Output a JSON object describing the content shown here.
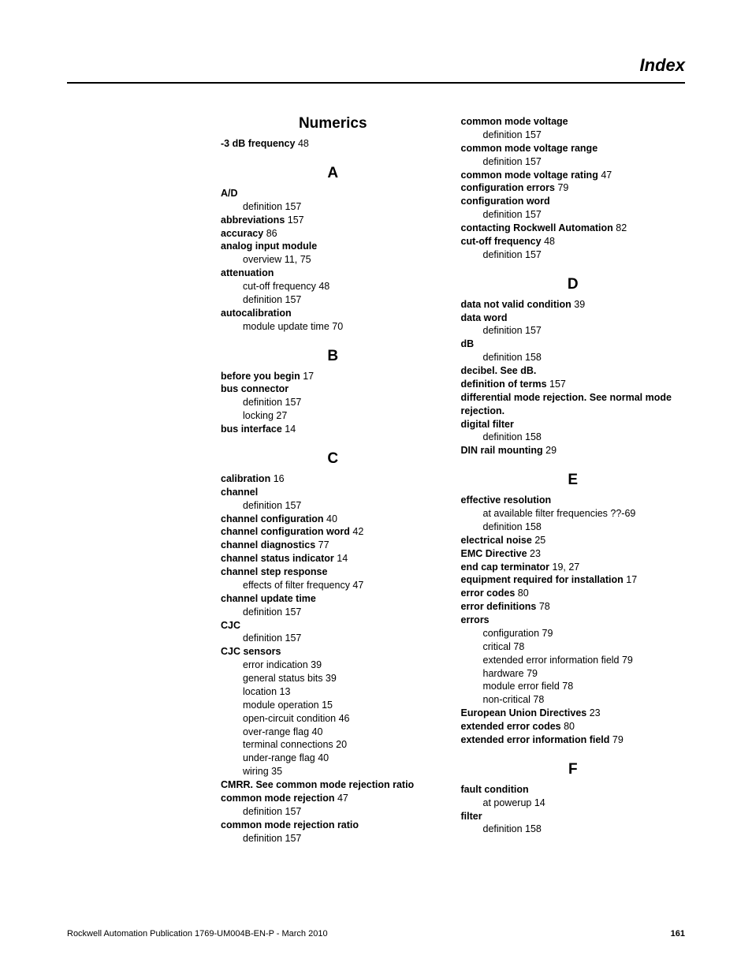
{
  "header": "Index",
  "footer": {
    "pub": "Rockwell Automation Publication 1769-UM004B-EN-P - March 2010",
    "page": "161"
  },
  "col1": {
    "sections": [
      {
        "letter": "Numerics",
        "first": true,
        "entries": [
          {
            "line": [
              {
                "b": "-3 dB frequency "
              },
              {
                "t": "48"
              }
            ]
          }
        ]
      },
      {
        "letter": "A",
        "entries": [
          {
            "line": [
              {
                "b": "A/D"
              }
            ]
          },
          {
            "sub": true,
            "line": [
              {
                "t": "definition 157"
              }
            ]
          },
          {
            "line": [
              {
                "b": "abbreviations "
              },
              {
                "t": "157"
              }
            ]
          },
          {
            "line": [
              {
                "b": "accuracy "
              },
              {
                "t": "86"
              }
            ]
          },
          {
            "line": [
              {
                "b": "analog input module"
              }
            ]
          },
          {
            "sub": true,
            "line": [
              {
                "t": "overview 11, 75"
              }
            ]
          },
          {
            "line": [
              {
                "b": "attenuation"
              }
            ]
          },
          {
            "sub": true,
            "line": [
              {
                "t": "cut-off frequency 48"
              }
            ]
          },
          {
            "sub": true,
            "line": [
              {
                "t": "definition 157"
              }
            ]
          },
          {
            "line": [
              {
                "b": "autocalibration"
              }
            ]
          },
          {
            "sub": true,
            "line": [
              {
                "t": "module update time 70"
              }
            ]
          }
        ]
      },
      {
        "letter": "B",
        "entries": [
          {
            "line": [
              {
                "b": "before you begin "
              },
              {
                "t": "17"
              }
            ]
          },
          {
            "line": [
              {
                "b": "bus connector"
              }
            ]
          },
          {
            "sub": true,
            "line": [
              {
                "t": "definition 157"
              }
            ]
          },
          {
            "sub": true,
            "line": [
              {
                "t": "locking 27"
              }
            ]
          },
          {
            "line": [
              {
                "b": "bus interface "
              },
              {
                "t": "14"
              }
            ]
          }
        ]
      },
      {
        "letter": "C",
        "entries": [
          {
            "line": [
              {
                "b": "calibration "
              },
              {
                "t": "16"
              }
            ]
          },
          {
            "line": [
              {
                "b": "channel"
              }
            ]
          },
          {
            "sub": true,
            "line": [
              {
                "t": "definition 157"
              }
            ]
          },
          {
            "line": [
              {
                "b": "channel configuration "
              },
              {
                "t": "40"
              }
            ]
          },
          {
            "line": [
              {
                "b": "channel configuration word "
              },
              {
                "t": "42"
              }
            ]
          },
          {
            "line": [
              {
                "b": "channel diagnostics "
              },
              {
                "t": "77"
              }
            ]
          },
          {
            "line": [
              {
                "b": "channel status indicator "
              },
              {
                "t": "14"
              }
            ]
          },
          {
            "line": [
              {
                "b": "channel step response"
              }
            ]
          },
          {
            "sub": true,
            "line": [
              {
                "t": "effects of filter frequency 47"
              }
            ]
          },
          {
            "line": [
              {
                "b": "channel update time"
              }
            ]
          },
          {
            "sub": true,
            "line": [
              {
                "t": "definition 157"
              }
            ]
          },
          {
            "line": [
              {
                "b": "CJC"
              }
            ]
          },
          {
            "sub": true,
            "line": [
              {
                "t": "definition 157"
              }
            ]
          },
          {
            "line": [
              {
                "b": "CJC sensors"
              }
            ]
          },
          {
            "sub": true,
            "line": [
              {
                "t": "error indication 39"
              }
            ]
          },
          {
            "sub": true,
            "line": [
              {
                "t": "general status bits 39"
              }
            ]
          },
          {
            "sub": true,
            "line": [
              {
                "t": "location 13"
              }
            ]
          },
          {
            "sub": true,
            "line": [
              {
                "t": "module operation 15"
              }
            ]
          },
          {
            "sub": true,
            "line": [
              {
                "t": "open-circuit condition 46"
              }
            ]
          },
          {
            "sub": true,
            "line": [
              {
                "t": "over-range flag 40"
              }
            ]
          },
          {
            "sub": true,
            "line": [
              {
                "t": "terminal connections 20"
              }
            ]
          },
          {
            "sub": true,
            "line": [
              {
                "t": "under-range flag 40"
              }
            ]
          },
          {
            "sub": true,
            "line": [
              {
                "t": "wiring 35"
              }
            ]
          },
          {
            "line": [
              {
                "b": "CMRR. See common mode rejection ratio"
              }
            ]
          },
          {
            "line": [
              {
                "b": "common mode rejection "
              },
              {
                "t": "47"
              }
            ]
          },
          {
            "sub": true,
            "line": [
              {
                "t": "definition 157"
              }
            ]
          },
          {
            "line": [
              {
                "b": "common mode rejection ratio"
              }
            ]
          },
          {
            "sub": true,
            "line": [
              {
                "t": "definition 157"
              }
            ]
          }
        ]
      }
    ]
  },
  "col2": {
    "sections": [
      {
        "letter": "",
        "first": true,
        "entries": [
          {
            "line": [
              {
                "b": "common mode voltage"
              }
            ]
          },
          {
            "sub": true,
            "line": [
              {
                "t": "definition 157"
              }
            ]
          },
          {
            "line": [
              {
                "b": "common mode voltage range"
              }
            ]
          },
          {
            "sub": true,
            "line": [
              {
                "t": "definition 157"
              }
            ]
          },
          {
            "line": [
              {
                "b": "common mode voltage rating "
              },
              {
                "t": "47"
              }
            ]
          },
          {
            "line": [
              {
                "b": "configuration errors "
              },
              {
                "t": "79"
              }
            ]
          },
          {
            "line": [
              {
                "b": "configuration word"
              }
            ]
          },
          {
            "sub": true,
            "line": [
              {
                "t": "definition 157"
              }
            ]
          },
          {
            "line": [
              {
                "b": "contacting Rockwell Automation "
              },
              {
                "t": "82"
              }
            ]
          },
          {
            "line": [
              {
                "b": "cut-off frequency "
              },
              {
                "t": "48"
              }
            ]
          },
          {
            "sub": true,
            "line": [
              {
                "t": "definition 157"
              }
            ]
          }
        ]
      },
      {
        "letter": "D",
        "entries": [
          {
            "line": [
              {
                "b": "data not valid condition "
              },
              {
                "t": "39"
              }
            ]
          },
          {
            "line": [
              {
                "b": "data word"
              }
            ]
          },
          {
            "sub": true,
            "line": [
              {
                "t": "definition 157"
              }
            ]
          },
          {
            "line": [
              {
                "b": "dB"
              }
            ]
          },
          {
            "sub": true,
            "line": [
              {
                "t": "definition 158"
              }
            ]
          },
          {
            "line": [
              {
                "b": "decibel. See dB."
              }
            ]
          },
          {
            "line": [
              {
                "b": "definition of terms "
              },
              {
                "t": "157"
              }
            ]
          },
          {
            "line": [
              {
                "b": "differential mode rejection. See normal mode rejection."
              }
            ]
          },
          {
            "line": [
              {
                "b": "digital filter"
              }
            ]
          },
          {
            "sub": true,
            "line": [
              {
                "t": "definition 158"
              }
            ]
          },
          {
            "line": [
              {
                "b": "DIN rail mounting "
              },
              {
                "t": "29"
              }
            ]
          }
        ]
      },
      {
        "letter": "E",
        "entries": [
          {
            "line": [
              {
                "b": "effective resolution"
              }
            ]
          },
          {
            "sub": true,
            "line": [
              {
                "t": "at available filter frequencies ??-69"
              }
            ]
          },
          {
            "sub": true,
            "line": [
              {
                "t": "definition 158"
              }
            ]
          },
          {
            "line": [
              {
                "b": "electrical noise "
              },
              {
                "t": "25"
              }
            ]
          },
          {
            "line": [
              {
                "b": "EMC Directive "
              },
              {
                "t": "23"
              }
            ]
          },
          {
            "line": [
              {
                "b": "end cap terminator "
              },
              {
                "t": "19, 27"
              }
            ]
          },
          {
            "line": [
              {
                "b": "equipment required for installation "
              },
              {
                "t": "17"
              }
            ]
          },
          {
            "line": [
              {
                "b": "error codes "
              },
              {
                "t": "80"
              }
            ]
          },
          {
            "line": [
              {
                "b": "error definitions "
              },
              {
                "t": "78"
              }
            ]
          },
          {
            "line": [
              {
                "b": "errors"
              }
            ]
          },
          {
            "sub": true,
            "line": [
              {
                "t": "configuration 79"
              }
            ]
          },
          {
            "sub": true,
            "line": [
              {
                "t": "critical 78"
              }
            ]
          },
          {
            "sub": true,
            "line": [
              {
                "t": "extended error information field 79"
              }
            ]
          },
          {
            "sub": true,
            "line": [
              {
                "t": "hardware 79"
              }
            ]
          },
          {
            "sub": true,
            "line": [
              {
                "t": "module error field 78"
              }
            ]
          },
          {
            "sub": true,
            "line": [
              {
                "t": "non-critical 78"
              }
            ]
          },
          {
            "line": [
              {
                "b": "European Union Directives "
              },
              {
                "t": "23"
              }
            ]
          },
          {
            "line": [
              {
                "b": "extended error codes "
              },
              {
                "t": "80"
              }
            ]
          },
          {
            "line": [
              {
                "b": "extended error information field "
              },
              {
                "t": "79"
              }
            ]
          }
        ]
      },
      {
        "letter": "F",
        "entries": [
          {
            "line": [
              {
                "b": "fault condition"
              }
            ]
          },
          {
            "sub": true,
            "line": [
              {
                "t": "at powerup 14"
              }
            ]
          },
          {
            "line": [
              {
                "b": "filter"
              }
            ]
          },
          {
            "sub": true,
            "line": [
              {
                "t": "definition 158"
              }
            ]
          }
        ]
      }
    ]
  }
}
